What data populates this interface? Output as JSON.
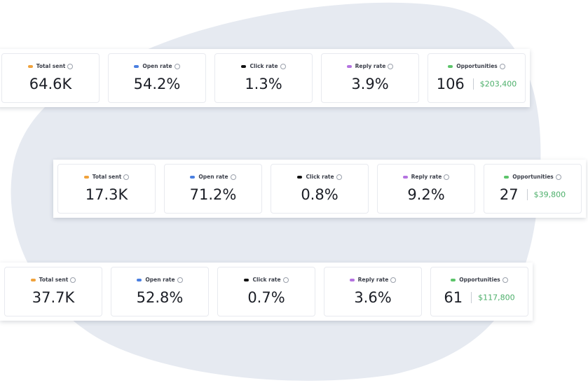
{
  "rows": [
    {
      "cards": [
        {
          "label": "Total sent",
          "value": "64.6K"
        },
        {
          "label": "Open rate",
          "value": "54.2%"
        },
        {
          "label": "Click rate",
          "value": "1.3%"
        },
        {
          "label": "Reply rate",
          "value": "3.9%"
        },
        {
          "label": "Opportunities",
          "value": "106",
          "amount": "$203,400"
        }
      ]
    },
    {
      "cards": [
        {
          "label": "Total sent",
          "value": "17.3K"
        },
        {
          "label": "Open rate",
          "value": "71.2%"
        },
        {
          "label": "Click rate",
          "value": "0.8%"
        },
        {
          "label": "Reply rate",
          "value": "9.2%"
        },
        {
          "label": "Opportunities",
          "value": "27",
          "amount": "$39,800"
        }
      ]
    },
    {
      "cards": [
        {
          "label": "Total sent",
          "value": "37.7K"
        },
        {
          "label": "Open rate",
          "value": "52.8%"
        },
        {
          "label": "Click rate",
          "value": "0.7%"
        },
        {
          "label": "Reply rate",
          "value": "3.6%"
        },
        {
          "label": "Opportunities",
          "value": "61",
          "amount": "$117,800"
        }
      ]
    }
  ]
}
